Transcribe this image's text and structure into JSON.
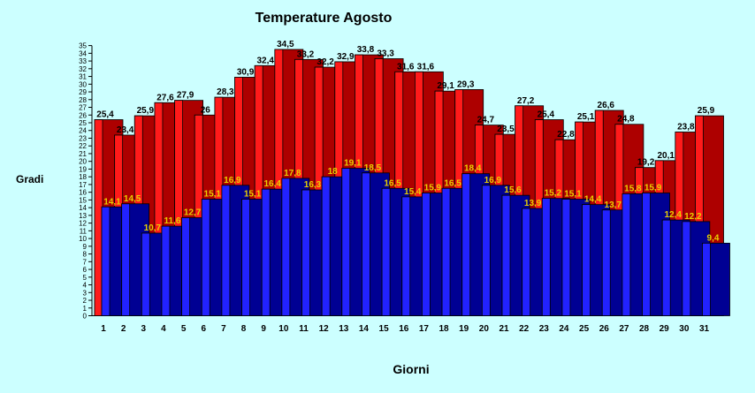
{
  "chart_data": {
    "type": "bar",
    "title": "Temperature Agosto",
    "xlabel": "Giorni",
    "ylabel": "Gradi",
    "ylim": [
      0,
      35
    ],
    "categories": [
      "1",
      "2",
      "3",
      "4",
      "5",
      "6",
      "7",
      "8",
      "9",
      "10",
      "11",
      "12",
      "13",
      "14",
      "15",
      "16",
      "17",
      "18",
      "19",
      "20",
      "21",
      "22",
      "23",
      "24",
      "25",
      "26",
      "27",
      "28",
      "29",
      "30",
      "31"
    ],
    "series": [
      {
        "values": [
          25.4,
          23.4,
          25.9,
          27.6,
          27.9,
          26,
          28.3,
          30.9,
          32.4,
          34.5,
          33.2,
          32.2,
          32.9,
          33.8,
          33.3,
          31.6,
          31.6,
          29.1,
          29.3,
          24.7,
          23.5,
          27.2,
          25.4,
          22.8,
          25.1,
          26.6,
          24.8,
          19.2,
          20.1,
          23.8,
          25.9
        ],
        "color": "#cc0000"
      },
      {
        "values": [
          14.1,
          14.5,
          10.7,
          11.6,
          12.7,
          15.1,
          16.9,
          15.1,
          16.4,
          17.8,
          16.3,
          18,
          19.1,
          18.5,
          16.5,
          15.4,
          15.9,
          16.5,
          18.4,
          16.9,
          15.6,
          13.9,
          15.2,
          15.1,
          14.4,
          13.7,
          15.8,
          15.9,
          12.4,
          12.2,
          9.4
        ],
        "color": "#0000cc"
      }
    ],
    "grid": false,
    "legend": "none"
  }
}
